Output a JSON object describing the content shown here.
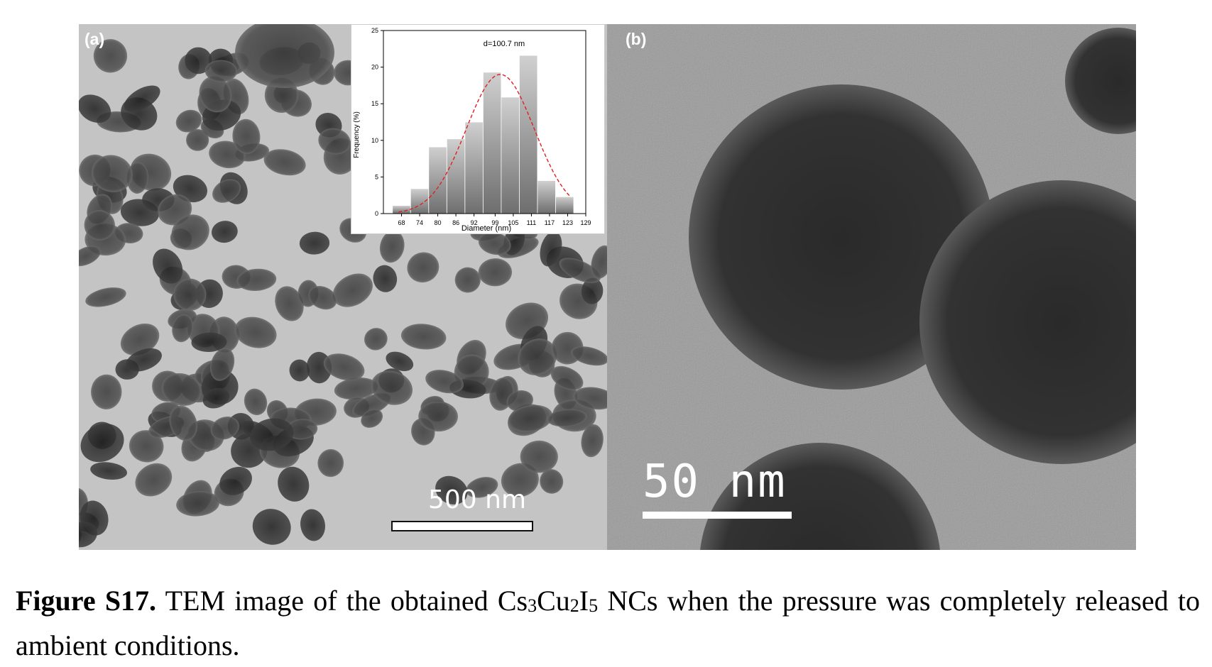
{
  "figure": {
    "panel_a": {
      "label": "(a)",
      "scale_bar_text": "500 nm"
    },
    "panel_b": {
      "label": "(b)",
      "scale_bar_text": "50 nm"
    },
    "inset_annotation": "d=100.7  nm"
  },
  "chart_data": {
    "type": "bar",
    "xlabel": "Diameter (nm)",
    "ylabel": "Frequency (%)",
    "annotation": "d=100.7  nm",
    "ylim": [
      0,
      25
    ],
    "xlim": [
      62,
      129
    ],
    "x_ticks": [
      "68",
      "74",
      "80",
      "86",
      "92",
      "99",
      "105",
      "111",
      "117",
      "123",
      "129"
    ],
    "y_ticks": [
      "0",
      "5",
      "10",
      "15",
      "20",
      "25"
    ],
    "bin_edges": [
      65,
      71,
      77,
      83,
      89,
      95,
      101,
      107,
      113,
      119,
      125
    ],
    "values": [
      1.1,
      3.4,
      9.1,
      10.2,
      12.5,
      19.3,
      15.9,
      21.6,
      4.5,
      2.3
    ],
    "fit_curve": {
      "type": "gaussian",
      "center": 100.7,
      "peak": 19.0,
      "sigma": 11.3,
      "color": "#e02020",
      "style": "dashed"
    },
    "bar_color": "#a8a8a8"
  },
  "caption": {
    "label": "Figure S17.",
    "text_before": " TEM image of the obtained Cs",
    "sub1": "3",
    "text_mid1": "Cu",
    "sub2": "2",
    "text_mid2": "I",
    "sub3": "5",
    "text_after": " NCs when the pressure was completely released to ambient conditions."
  }
}
